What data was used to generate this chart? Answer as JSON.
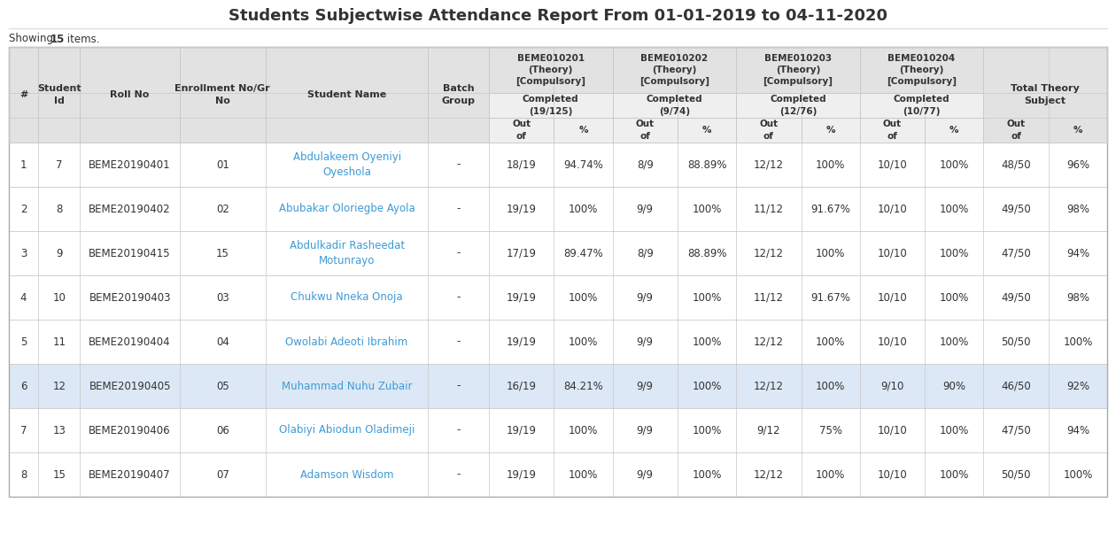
{
  "title": "Students Subjectwise Attendance Report From 01-01-2019 to 04-11-2020",
  "bg_color": "#ffffff",
  "header_bg": "#e2e2e2",
  "subheader_bg": "#efefef",
  "row_normal_bg": "#ffffff",
  "row_alt_bg": "#dce8f5",
  "border_color": "#c8c8c8",
  "text_color": "#333333",
  "link_color": "#3d9bd4",
  "highlighted_row_indices": [
    5
  ],
  "rows": [
    [
      1,
      7,
      "BEME20190401",
      "01",
      "Abdulakeem Oyeniyi\nOyeshola",
      "-",
      "18/19",
      "94.74%",
      "8/9",
      "88.89%",
      "12/12",
      "100%",
      "10/10",
      "100%",
      "48/50",
      "96%"
    ],
    [
      2,
      8,
      "BEME20190402",
      "02",
      "Abubakar Oloriegbe Ayola",
      "-",
      "19/19",
      "100%",
      "9/9",
      "100%",
      "11/12",
      "91.67%",
      "10/10",
      "100%",
      "49/50",
      "98%"
    ],
    [
      3,
      9,
      "BEME20190415",
      "15",
      "Abdulkadir Rasheedat\nMotunrayo",
      "-",
      "17/19",
      "89.47%",
      "8/9",
      "88.89%",
      "12/12",
      "100%",
      "10/10",
      "100%",
      "47/50",
      "94%"
    ],
    [
      4,
      10,
      "BEME20190403",
      "03",
      "Chukwu Nneka Onoja",
      "-",
      "19/19",
      "100%",
      "9/9",
      "100%",
      "11/12",
      "91.67%",
      "10/10",
      "100%",
      "49/50",
      "98%"
    ],
    [
      5,
      11,
      "BEME20190404",
      "04",
      "Owolabi Adeoti Ibrahim",
      "-",
      "19/19",
      "100%",
      "9/9",
      "100%",
      "12/12",
      "100%",
      "10/10",
      "100%",
      "50/50",
      "100%"
    ],
    [
      6,
      12,
      "BEME20190405",
      "05",
      "Muhammad Nuhu Zubair",
      "-",
      "16/19",
      "84.21%",
      "9/9",
      "100%",
      "12/12",
      "100%",
      "9/10",
      "90%",
      "46/50",
      "92%"
    ],
    [
      7,
      13,
      "BEME20190406",
      "06",
      "Olabiyi Abiodun Oladimeji",
      "-",
      "19/19",
      "100%",
      "9/9",
      "100%",
      "9/12",
      "75%",
      "10/10",
      "100%",
      "47/50",
      "94%"
    ],
    [
      8,
      15,
      "BEME20190407",
      "07",
      "Adamson Wisdom",
      "-",
      "19/19",
      "100%",
      "9/9",
      "100%",
      "12/12",
      "100%",
      "10/10",
      "100%",
      "50/50",
      "100%"
    ]
  ]
}
